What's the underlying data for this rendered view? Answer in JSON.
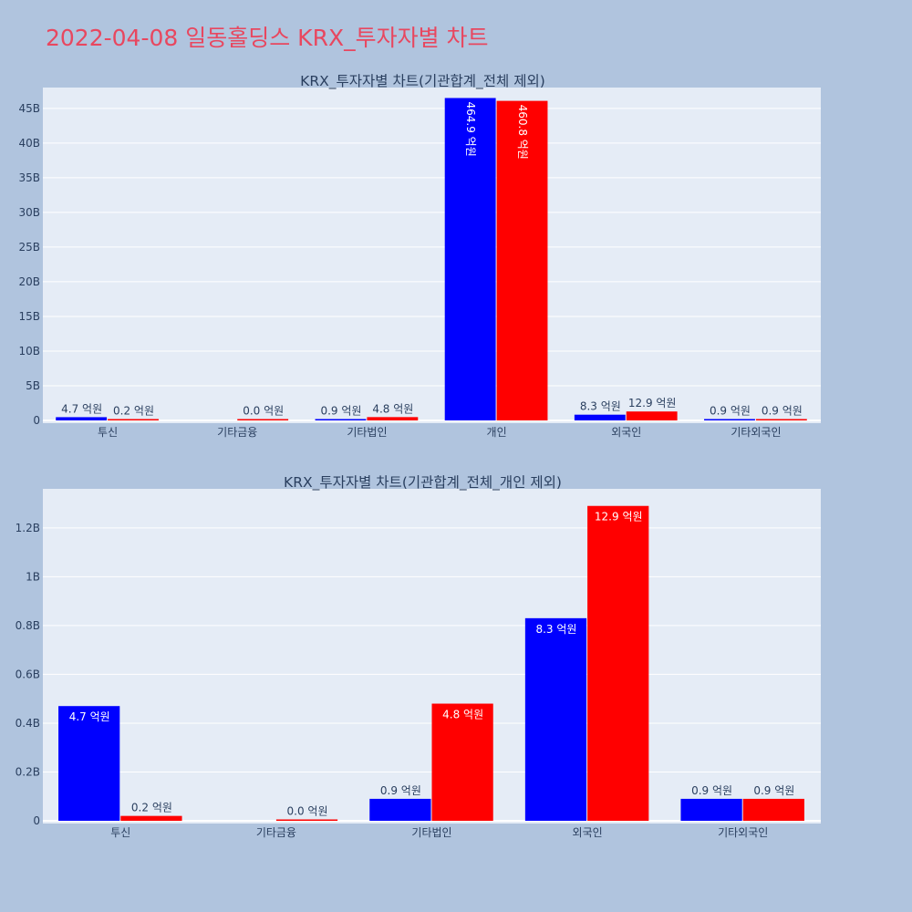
{
  "page_title": "2022-04-08 일동홀딩스 KRX_투자자별 차트",
  "colors": {
    "series_a": "#0000ff",
    "series_b": "#ff0000",
    "title": "#e8475f",
    "plot_bg": "#e5ecf6",
    "page_bg": "#b0c4de"
  },
  "chart_data": [
    {
      "type": "bar",
      "title": "KRX_투자자별 차트(기관합계_전체 제외)",
      "categories": [
        "투신",
        "기타금융",
        "기타법인",
        "개인",
        "외국인",
        "기타외국인"
      ],
      "series": [
        {
          "color": "#0000ff",
          "values": [
            0.47,
            null,
            0.09,
            46.49,
            0.83,
            0.09
          ],
          "labels": [
            "4.7 억원",
            "",
            "0.9 억원",
            "464.9 억원",
            "8.3 억원",
            "0.9 억원"
          ]
        },
        {
          "color": "#ff0000",
          "values": [
            0.02,
            0.0,
            0.48,
            46.08,
            1.29,
            0.09
          ],
          "labels": [
            "0.2 억원",
            "0.0 억원",
            "4.8 억원",
            "460.8 억원",
            "12.9 억원",
            "0.9 억원"
          ]
        }
      ],
      "ylim": [
        0,
        48
      ],
      "yticks": [
        0,
        5,
        10,
        15,
        20,
        25,
        30,
        35,
        40,
        45
      ],
      "ytick_labels": [
        "0",
        "5B",
        "10B",
        "15B",
        "20B",
        "25B",
        "30B",
        "35B",
        "40B",
        "45B"
      ],
      "grid": true
    },
    {
      "type": "bar",
      "title": "KRX_투자자별 차트(기관합계_전체_개인 제외)",
      "categories": [
        "투신",
        "기타금융",
        "기타법인",
        "외국인",
        "기타외국인"
      ],
      "series": [
        {
          "color": "#0000ff",
          "values": [
            0.47,
            null,
            0.09,
            0.83,
            0.09
          ],
          "labels": [
            "4.7 억원",
            "",
            "0.9 억원",
            "8.3 억원",
            "0.9 억원"
          ]
        },
        {
          "color": "#ff0000",
          "values": [
            0.02,
            0.0,
            0.48,
            1.29,
            0.09
          ],
          "labels": [
            "0.2 억원",
            "0.0 억원",
            "4.8 억원",
            "12.9 억원",
            "0.9 억원"
          ]
        }
      ],
      "ylim": [
        0,
        1.36
      ],
      "yticks": [
        0,
        0.2,
        0.4,
        0.6,
        0.8,
        1.0,
        1.2
      ],
      "ytick_labels": [
        "0",
        "0.2B",
        "0.4B",
        "0.6B",
        "0.8B",
        "1B",
        "1.2B"
      ],
      "grid": true
    }
  ]
}
